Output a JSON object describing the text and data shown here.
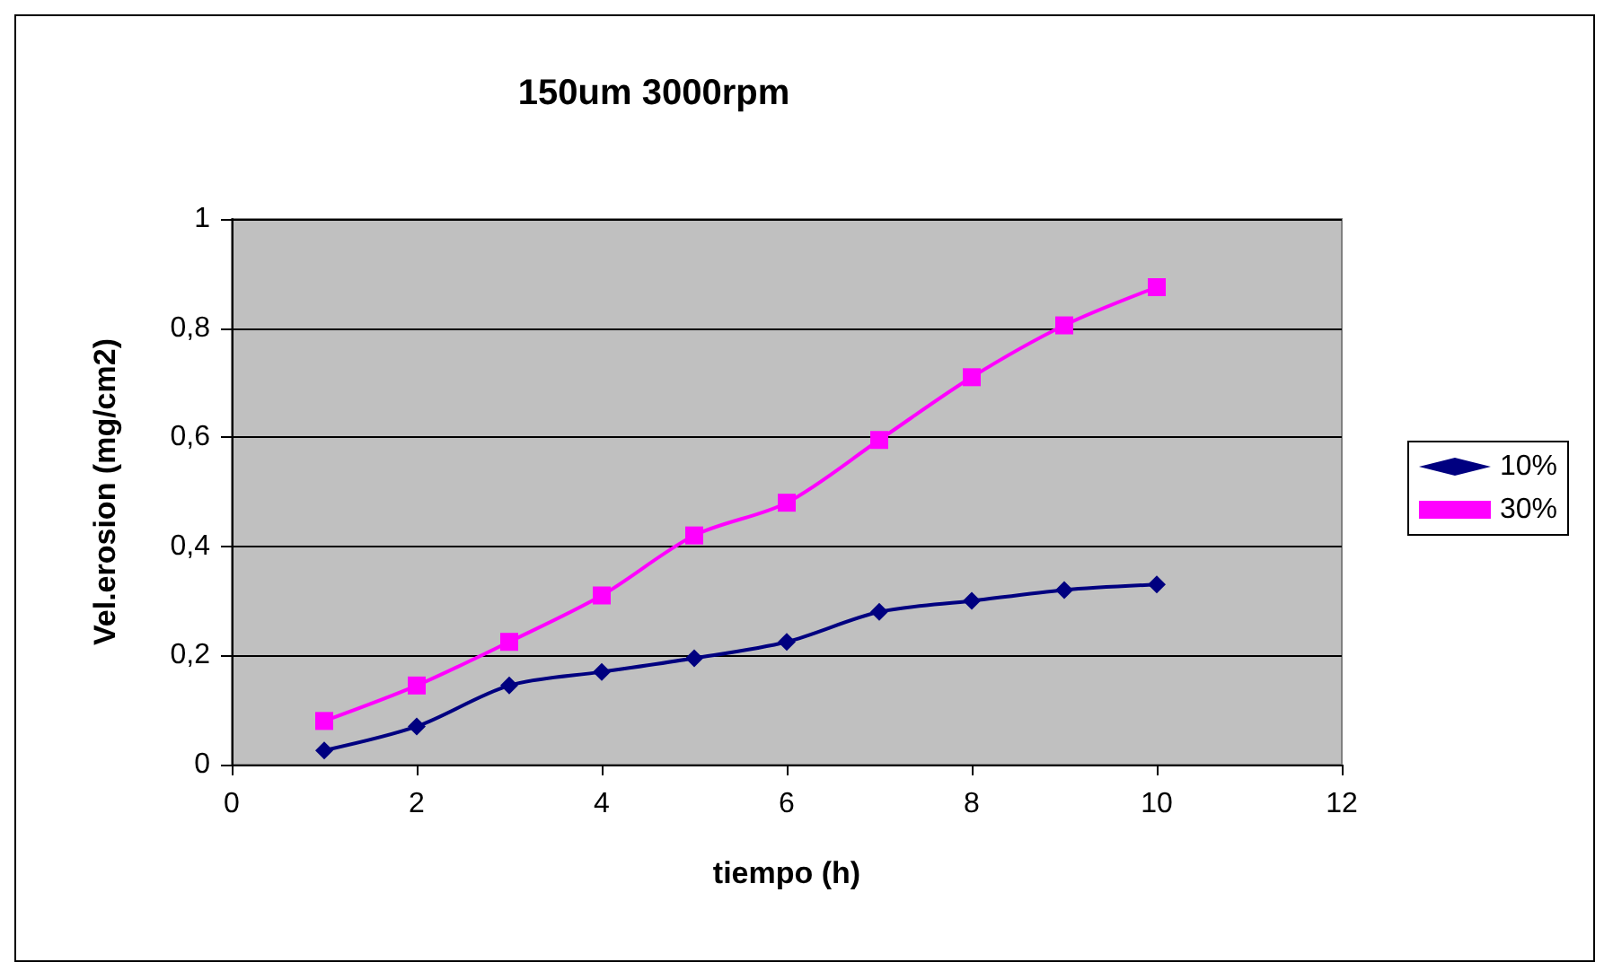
{
  "chart_data": {
    "type": "line",
    "title": "150um 3000rpm",
    "xlabel": "tiempo (h)",
    "ylabel": "Vel.erosion (mg/cm2)",
    "x": [
      1,
      2,
      3,
      4,
      5,
      6,
      7,
      8,
      9,
      10
    ],
    "series": [
      {
        "name": "10%",
        "color": "#000080",
        "marker": "diamond",
        "values": [
          0.026,
          0.07,
          0.145,
          0.17,
          0.195,
          0.225,
          0.28,
          0.3,
          0.32,
          0.33
        ]
      },
      {
        "name": "30%",
        "color": "#ff00ff",
        "marker": "square",
        "values": [
          0.08,
          0.145,
          0.225,
          0.31,
          0.42,
          0.48,
          0.595,
          0.71,
          0.805,
          0.875
        ]
      }
    ],
    "xlim": [
      0,
      12
    ],
    "xticks": [
      0,
      2,
      4,
      6,
      8,
      10,
      12
    ],
    "ylim": [
      0,
      1
    ],
    "yticks": [
      0,
      {
        "value": 0.2,
        "label": "0,2"
      },
      {
        "value": 0.4,
        "label": "0,4"
      },
      {
        "value": 0.6,
        "label": "0,6"
      },
      {
        "value": 0.8,
        "label": "0,8"
      },
      1
    ],
    "grid": "y",
    "legend": "right"
  }
}
